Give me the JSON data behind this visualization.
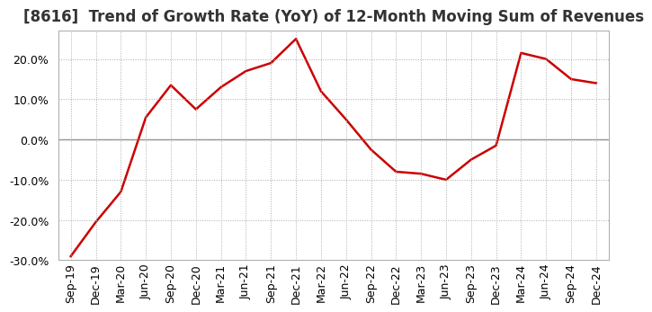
{
  "title": "[8616]  Trend of Growth Rate (YoY) of 12-Month Moving Sum of Revenues",
  "line_color": "#CC0000",
  "background_color": "#FFFFFF",
  "grid_color": "#AAAAAA",
  "x_labels": [
    "Sep-19",
    "Dec-19",
    "Mar-20",
    "Jun-20",
    "Sep-20",
    "Dec-20",
    "Mar-21",
    "Jun-21",
    "Sep-21",
    "Dec-21",
    "Mar-22",
    "Jun-22",
    "Sep-22",
    "Dec-22",
    "Mar-23",
    "Jun-23",
    "Sep-23",
    "Dec-23",
    "Mar-24",
    "Jun-24",
    "Sep-24",
    "Dec-24"
  ],
  "values": [
    -0.29,
    -0.205,
    -0.13,
    0.055,
    0.135,
    0.075,
    0.13,
    0.17,
    0.19,
    0.25,
    0.12,
    0.05,
    -0.025,
    -0.08,
    -0.085,
    -0.1,
    -0.05,
    -0.015,
    0.215,
    0.2,
    0.15,
    0.14
  ],
  "ylim": [
    -0.3,
    0.27
  ],
  "yticks": [
    -0.3,
    -0.2,
    -0.1,
    0.0,
    0.1,
    0.2
  ],
  "title_fontsize": 12,
  "tick_fontsize": 9,
  "line_width": 1.8
}
